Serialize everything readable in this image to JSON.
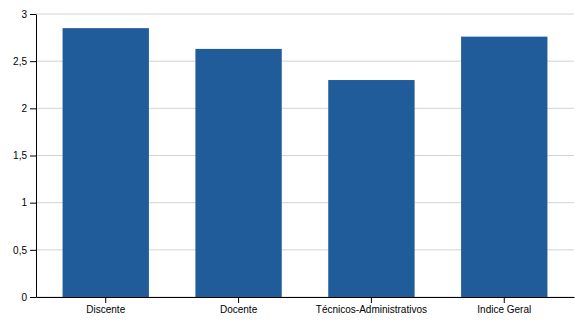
{
  "chart_data": {
    "type": "bar",
    "categories": [
      "Discente",
      "Docente",
      "Técnicos-Administrativos",
      "Indice Geral"
    ],
    "values": [
      2.85,
      2.63,
      2.3,
      2.76
    ],
    "color": "#1F5C99",
    "ylim": [
      0,
      3
    ],
    "yticks": [
      0,
      {
        "value": 0.5,
        "label": "0,5"
      },
      1,
      {
        "value": 1.5,
        "label": "1,5"
      },
      2,
      {
        "value": 2.5,
        "label": "2,5"
      },
      3
    ],
    "grid": true
  }
}
